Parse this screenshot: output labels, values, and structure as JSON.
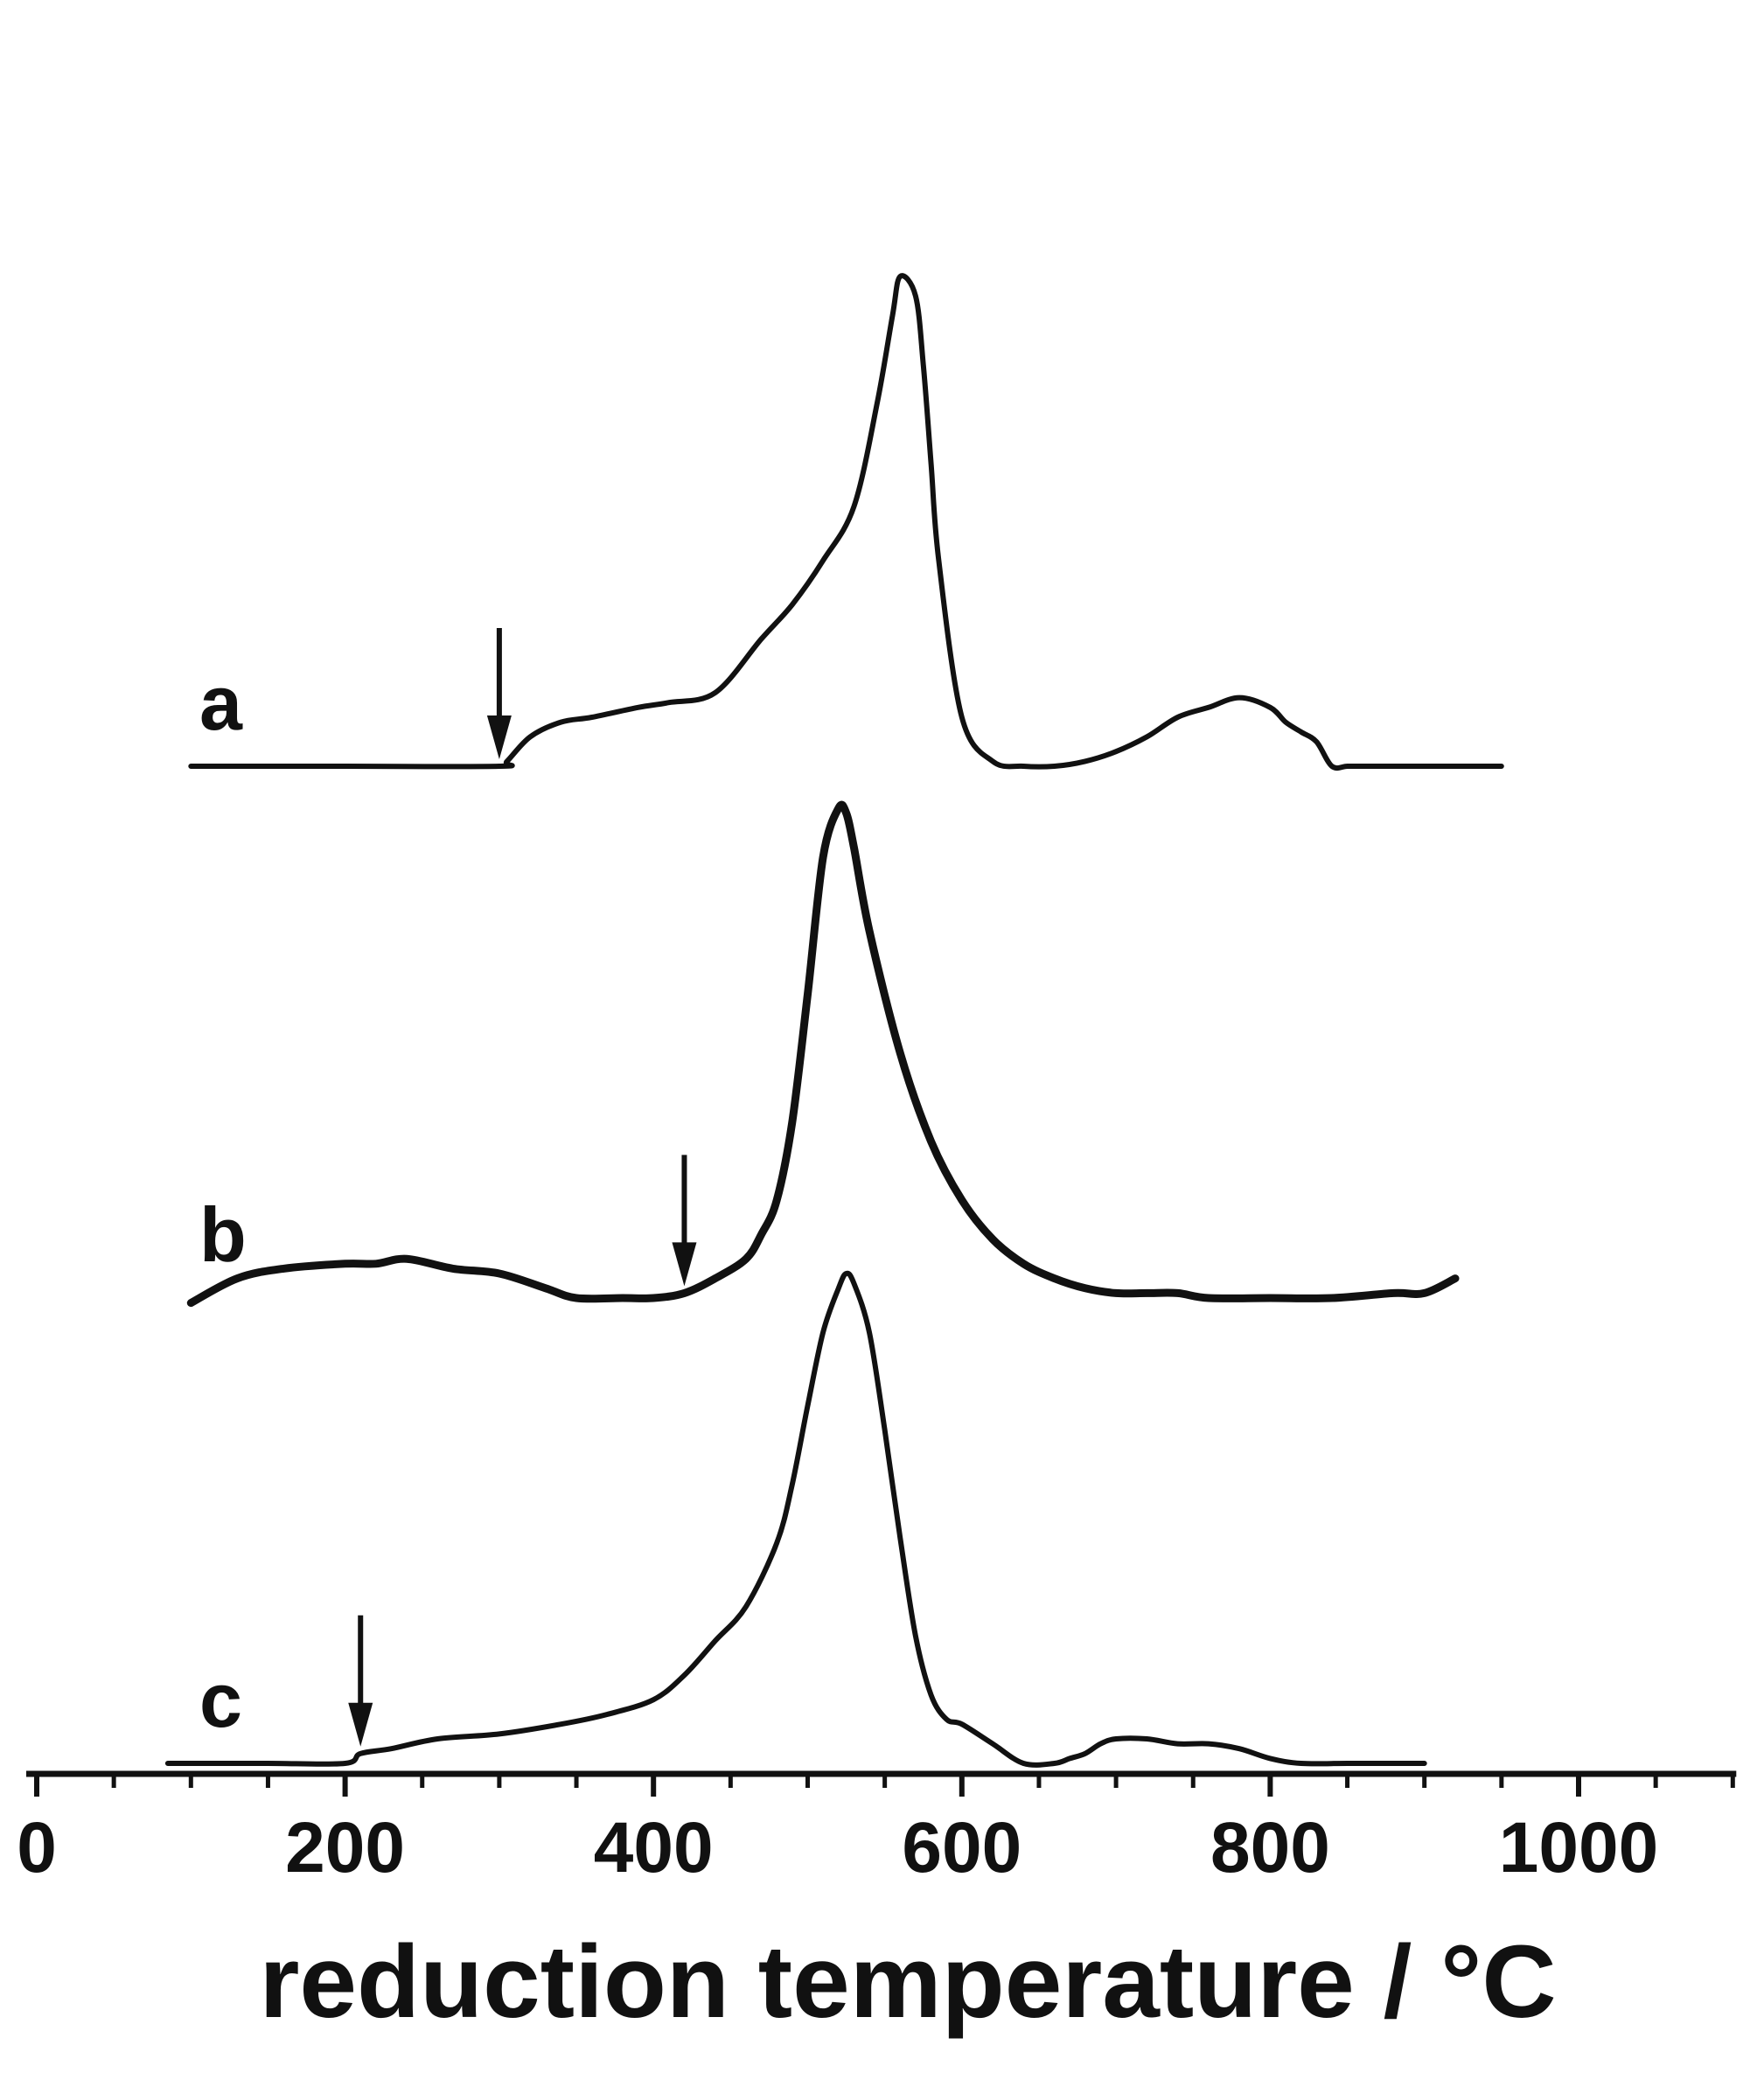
{
  "chart_data": {
    "type": "line",
    "xlabel": "reduction temperature / °C",
    "ylabel": "",
    "xlim": [
      0,
      1100
    ],
    "xticks": [
      0,
      200,
      400,
      600,
      800,
      1000
    ],
    "grid": false,
    "y_axis_shown": false,
    "series": [
      {
        "name": "a",
        "color": "#111111",
        "arrow_at": 300,
        "offset": 1.5,
        "x": [
          100,
          200,
          300,
          305,
          320,
          340,
          360,
          390,
          410,
          440,
          470,
          490,
          510,
          530,
          545,
          555,
          560,
          570,
          575,
          580,
          585,
          600,
          620,
          640,
          660,
          680,
          700,
          720,
          740,
          760,
          780,
          800,
          810,
          820,
          830,
          840,
          850,
          860,
          880,
          900,
          920,
          950
        ],
        "y": [
          0,
          0,
          0,
          0.01,
          0.06,
          0.09,
          0.1,
          0.12,
          0.13,
          0.15,
          0.26,
          0.33,
          0.42,
          0.53,
          0.74,
          0.92,
          1.0,
          0.96,
          0.82,
          0.62,
          0.42,
          0.1,
          0.01,
          0,
          0,
          0.01,
          0.03,
          0.06,
          0.1,
          0.12,
          0.14,
          0.12,
          0.09,
          0.07,
          0.05,
          0,
          0,
          0,
          0,
          0,
          0,
          0
        ]
      },
      {
        "name": "b",
        "color": "#111111",
        "arrow_at": 420,
        "offset": 0.7,
        "x": [
          100,
          130,
          160,
          200,
          220,
          240,
          270,
          300,
          330,
          350,
          380,
          400,
          420,
          440,
          460,
          470,
          480,
          490,
          500,
          510,
          520,
          525,
          530,
          540,
          560,
          580,
          600,
          620,
          640,
          660,
          680,
          700,
          720,
          740,
          760,
          800,
          840,
          880,
          900,
          920
        ],
        "y": [
          -0.01,
          0.04,
          0.06,
          0.07,
          0.07,
          0.08,
          0.06,
          0.05,
          0.02,
          0,
          0,
          0,
          0.01,
          0.04,
          0.08,
          0.13,
          0.2,
          0.36,
          0.62,
          0.9,
          1.0,
          0.99,
          0.92,
          0.75,
          0.5,
          0.32,
          0.2,
          0.12,
          0.07,
          0.04,
          0.02,
          0.01,
          0.01,
          0.01,
          0,
          0,
          0,
          0.01,
          0.01,
          0.04
        ]
      },
      {
        "name": "c",
        "color": "#111111",
        "arrow_at": 210,
        "offset": 0,
        "x": [
          85,
          100,
          150,
          200,
          210,
          230,
          260,
          300,
          340,
          370,
          400,
          420,
          440,
          460,
          480,
          490,
          500,
          510,
          520,
          525,
          530,
          540,
          550,
          560,
          570,
          580,
          590,
          600,
          620,
          640,
          660,
          670,
          680,
          690,
          700,
          720,
          740,
          760,
          780,
          800,
          820,
          850,
          880,
          900
        ],
        "y": [
          0,
          0,
          0,
          0,
          0.02,
          0.03,
          0.05,
          0.06,
          0.08,
          0.1,
          0.13,
          0.18,
          0.25,
          0.32,
          0.45,
          0.57,
          0.73,
          0.88,
          0.97,
          1.0,
          0.98,
          0.88,
          0.68,
          0.46,
          0.26,
          0.14,
          0.09,
          0.08,
          0.04,
          0,
          0,
          0.01,
          0.02,
          0.04,
          0.05,
          0.05,
          0.04,
          0.04,
          0.03,
          0.01,
          0,
          0,
          0,
          0
        ]
      }
    ]
  }
}
